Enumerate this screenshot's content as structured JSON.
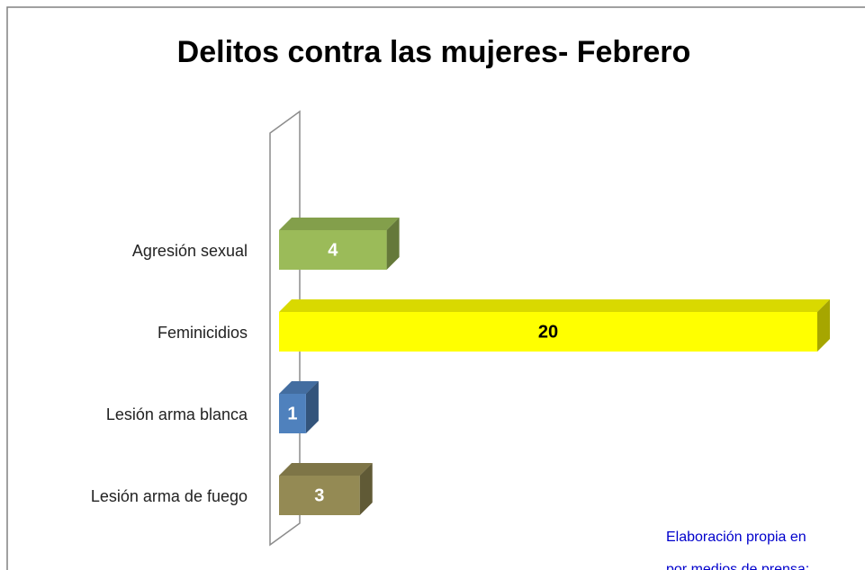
{
  "chart_data": {
    "type": "bar3d_horizontal",
    "title": "Delitos contra las mujeres- Febrero",
    "categories": [
      "Agresión sexual",
      "Feminicidios",
      "Lesión arma blanca",
      "Lesión arma de fuego"
    ],
    "values": [
      4,
      20,
      1,
      3
    ],
    "colors": [
      "#9bbb59",
      "#ffff00",
      "#4f81bd",
      "#948a54"
    ],
    "label_colors": [
      "#ffffff",
      "#000000",
      "#ffffff",
      "#ffffff"
    ],
    "annotations": [
      "Elaboración propia en",
      "por medios de prensa:"
    ],
    "annotation_color": "#0000cc"
  }
}
